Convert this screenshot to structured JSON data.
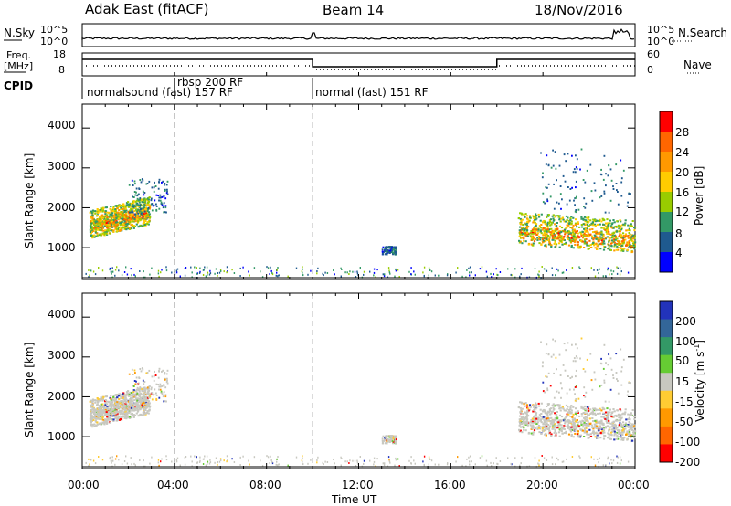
{
  "header": {
    "radar": "Adak East (fitACF)",
    "beam": "Beam 14",
    "date": "18/Nov/2016"
  },
  "noise_panel": {
    "left_label": "N.Sky",
    "left_ticks": [
      "10^5",
      "10^0"
    ],
    "right_ticks": [
      "10^5",
      "10^0"
    ],
    "right_label": "N.Search"
  },
  "freq_panel": {
    "left_label_1": "Freq.",
    "left_label_2": "[MHz]",
    "left_ticks": [
      "18",
      "8"
    ],
    "right_ticks": [
      "60",
      "0"
    ],
    "right_label": "Nave"
  },
  "cpid": {
    "label": "CPID",
    "segments": [
      {
        "text": "normalsound (fast) 157 RF",
        "start_h": 0.0,
        "end_h": 4.0
      },
      {
        "text": "rbsp 200 RF",
        "start_h": 4.0,
        "end_h": 10.0
      },
      {
        "text": "normal (fast) 151 RF",
        "start_h": 10.0,
        "end_h": 24.0
      }
    ]
  },
  "chart_data": [
    {
      "type": "heatmap",
      "name": "power",
      "ylabel": "Slant Range [km]",
      "yticks": [
        "1000",
        "2000",
        "3000",
        "4000"
      ],
      "ylim": [
        200,
        4600
      ],
      "xlim_h": [
        0,
        24
      ],
      "colorbar": {
        "label": "Power [dB]",
        "ticks": [
          "28",
          "24",
          "20",
          "16",
          "12",
          "8",
          "4"
        ],
        "colors": [
          "#ff0000",
          "#ff6600",
          "#ff9900",
          "#ffcc00",
          "#99cc00",
          "#339966",
          "#1f5a8f",
          "#0000ff"
        ]
      },
      "regions": [
        {
          "t0": 0.3,
          "t1": 2.9,
          "r0": 1250,
          "r1": 1950,
          "type": "dense",
          "tilt": 350
        },
        {
          "t0": 2.0,
          "t1": 3.7,
          "r0": 1850,
          "r1": 2750,
          "type": "sparse",
          "tilt": 0
        },
        {
          "t0": 18.9,
          "t1": 24.0,
          "r0": 1100,
          "r1": 1900,
          "type": "dense",
          "tilt": -200
        },
        {
          "t0": 19.8,
          "t1": 23.8,
          "r0": 1900,
          "r1": 3500,
          "type": "sparse",
          "tilt": 0
        },
        {
          "t0": 13.0,
          "t1": 13.6,
          "r0": 850,
          "r1": 1050,
          "type": "sparse",
          "tilt": 0
        }
      ]
    },
    {
      "type": "heatmap",
      "name": "velocity",
      "ylabel": "Slant Range [km]",
      "yticks": [
        "1000",
        "2000",
        "3000",
        "4000"
      ],
      "ylim": [
        200,
        4600
      ],
      "colorbar": {
        "label": "Velocity [m s^-1]",
        "ticks": [
          "200",
          "100",
          "50",
          "15",
          "-15",
          "-50",
          "-100",
          "-200"
        ],
        "colors": [
          "#2233bb",
          "#336699",
          "#339966",
          "#66cc33",
          "#c8c8c0",
          "#ffcc33",
          "#ff9900",
          "#ff6600",
          "#ff0000"
        ]
      },
      "xticks": [
        "00:00",
        "04:00",
        "08:00",
        "12:00",
        "16:00",
        "20:00",
        "00:00"
      ],
      "xlabel": "Time UT"
    }
  ]
}
